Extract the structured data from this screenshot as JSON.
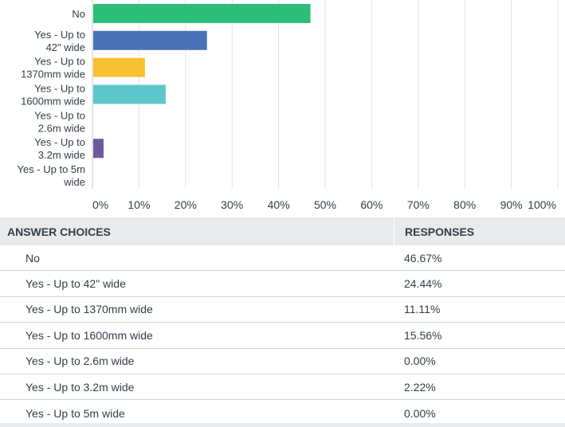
{
  "chart_data": {
    "type": "bar",
    "orientation": "horizontal",
    "categories": [
      [
        "No"
      ],
      [
        "Yes - Up to",
        "42\" wide"
      ],
      [
        "Yes - Up to",
        "1370mm wide"
      ],
      [
        "Yes - Up to",
        "1600mm wide"
      ],
      [
        "Yes - Up to",
        "2.6m wide"
      ],
      [
        "Yes - Up to",
        "3.2m wide"
      ],
      [
        "Yes - Up to 5m",
        "wide"
      ]
    ],
    "values": [
      46.67,
      24.44,
      11.11,
      15.56,
      0.0,
      2.22,
      0.0
    ],
    "colors": [
      "#2dbd7b",
      "#4a72b8",
      "#f6c030",
      "#5cc7c9",
      "#e05c5c",
      "#6c5b9c",
      "#9e9e9e"
    ],
    "xlim": [
      0,
      100
    ],
    "xticks": [
      "0%",
      "10%",
      "20%",
      "30%",
      "40%",
      "50%",
      "60%",
      "70%",
      "80%",
      "90%",
      "100%"
    ],
    "grid": true
  },
  "table": {
    "header": {
      "choice": "ANSWER CHOICES",
      "responses": "RESPONSES"
    },
    "rows": [
      {
        "choice": "No",
        "response": "46.67%"
      },
      {
        "choice": "Yes - Up to 42\" wide",
        "response": "24.44%"
      },
      {
        "choice": "Yes - Up to 1370mm wide",
        "response": "11.11%"
      },
      {
        "choice": "Yes - Up to 1600mm wide",
        "response": "15.56%"
      },
      {
        "choice": "Yes - Up to 2.6m wide",
        "response": "0.00%"
      },
      {
        "choice": "Yes - Up to 3.2m wide",
        "response": "2.22%"
      },
      {
        "choice": "Yes - Up to 5m wide",
        "response": "0.00%"
      }
    ]
  }
}
